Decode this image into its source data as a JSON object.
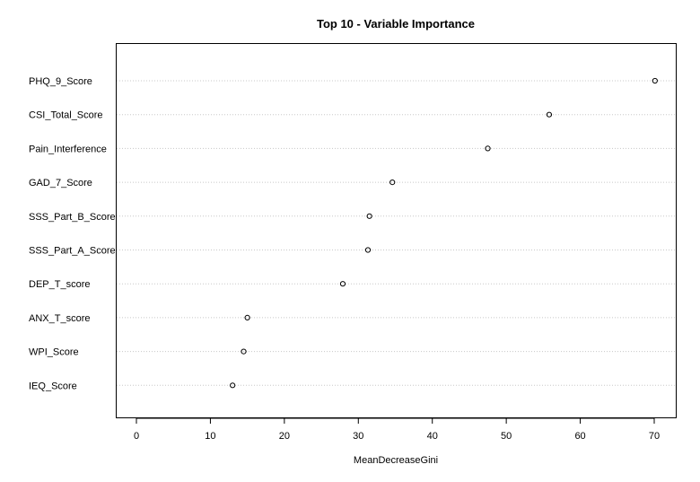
{
  "chart_data": {
    "type": "scatter",
    "title": "Top 10 - Variable Importance",
    "xlabel": "MeanDecreaseGini",
    "ylabel": "",
    "xlim": [
      -3,
      75
    ],
    "xticks": [
      0,
      10,
      20,
      30,
      40,
      50,
      60,
      70
    ],
    "grid": "horizontal dotted lines",
    "categories": [
      "PHQ_9_Score",
      "CSI_Total_Score",
      "Pain_Interference",
      "GAD_7_Score",
      "SSS_Part_B_Score",
      "SSS_Part_A_Score",
      "DEP_T_score",
      "ANX_T_score",
      "WPI_Score",
      "IEQ_Score"
    ],
    "values": [
      70.1,
      55.8,
      47.5,
      34.6,
      31.5,
      31.3,
      27.9,
      15.0,
      14.5,
      13.0
    ]
  }
}
